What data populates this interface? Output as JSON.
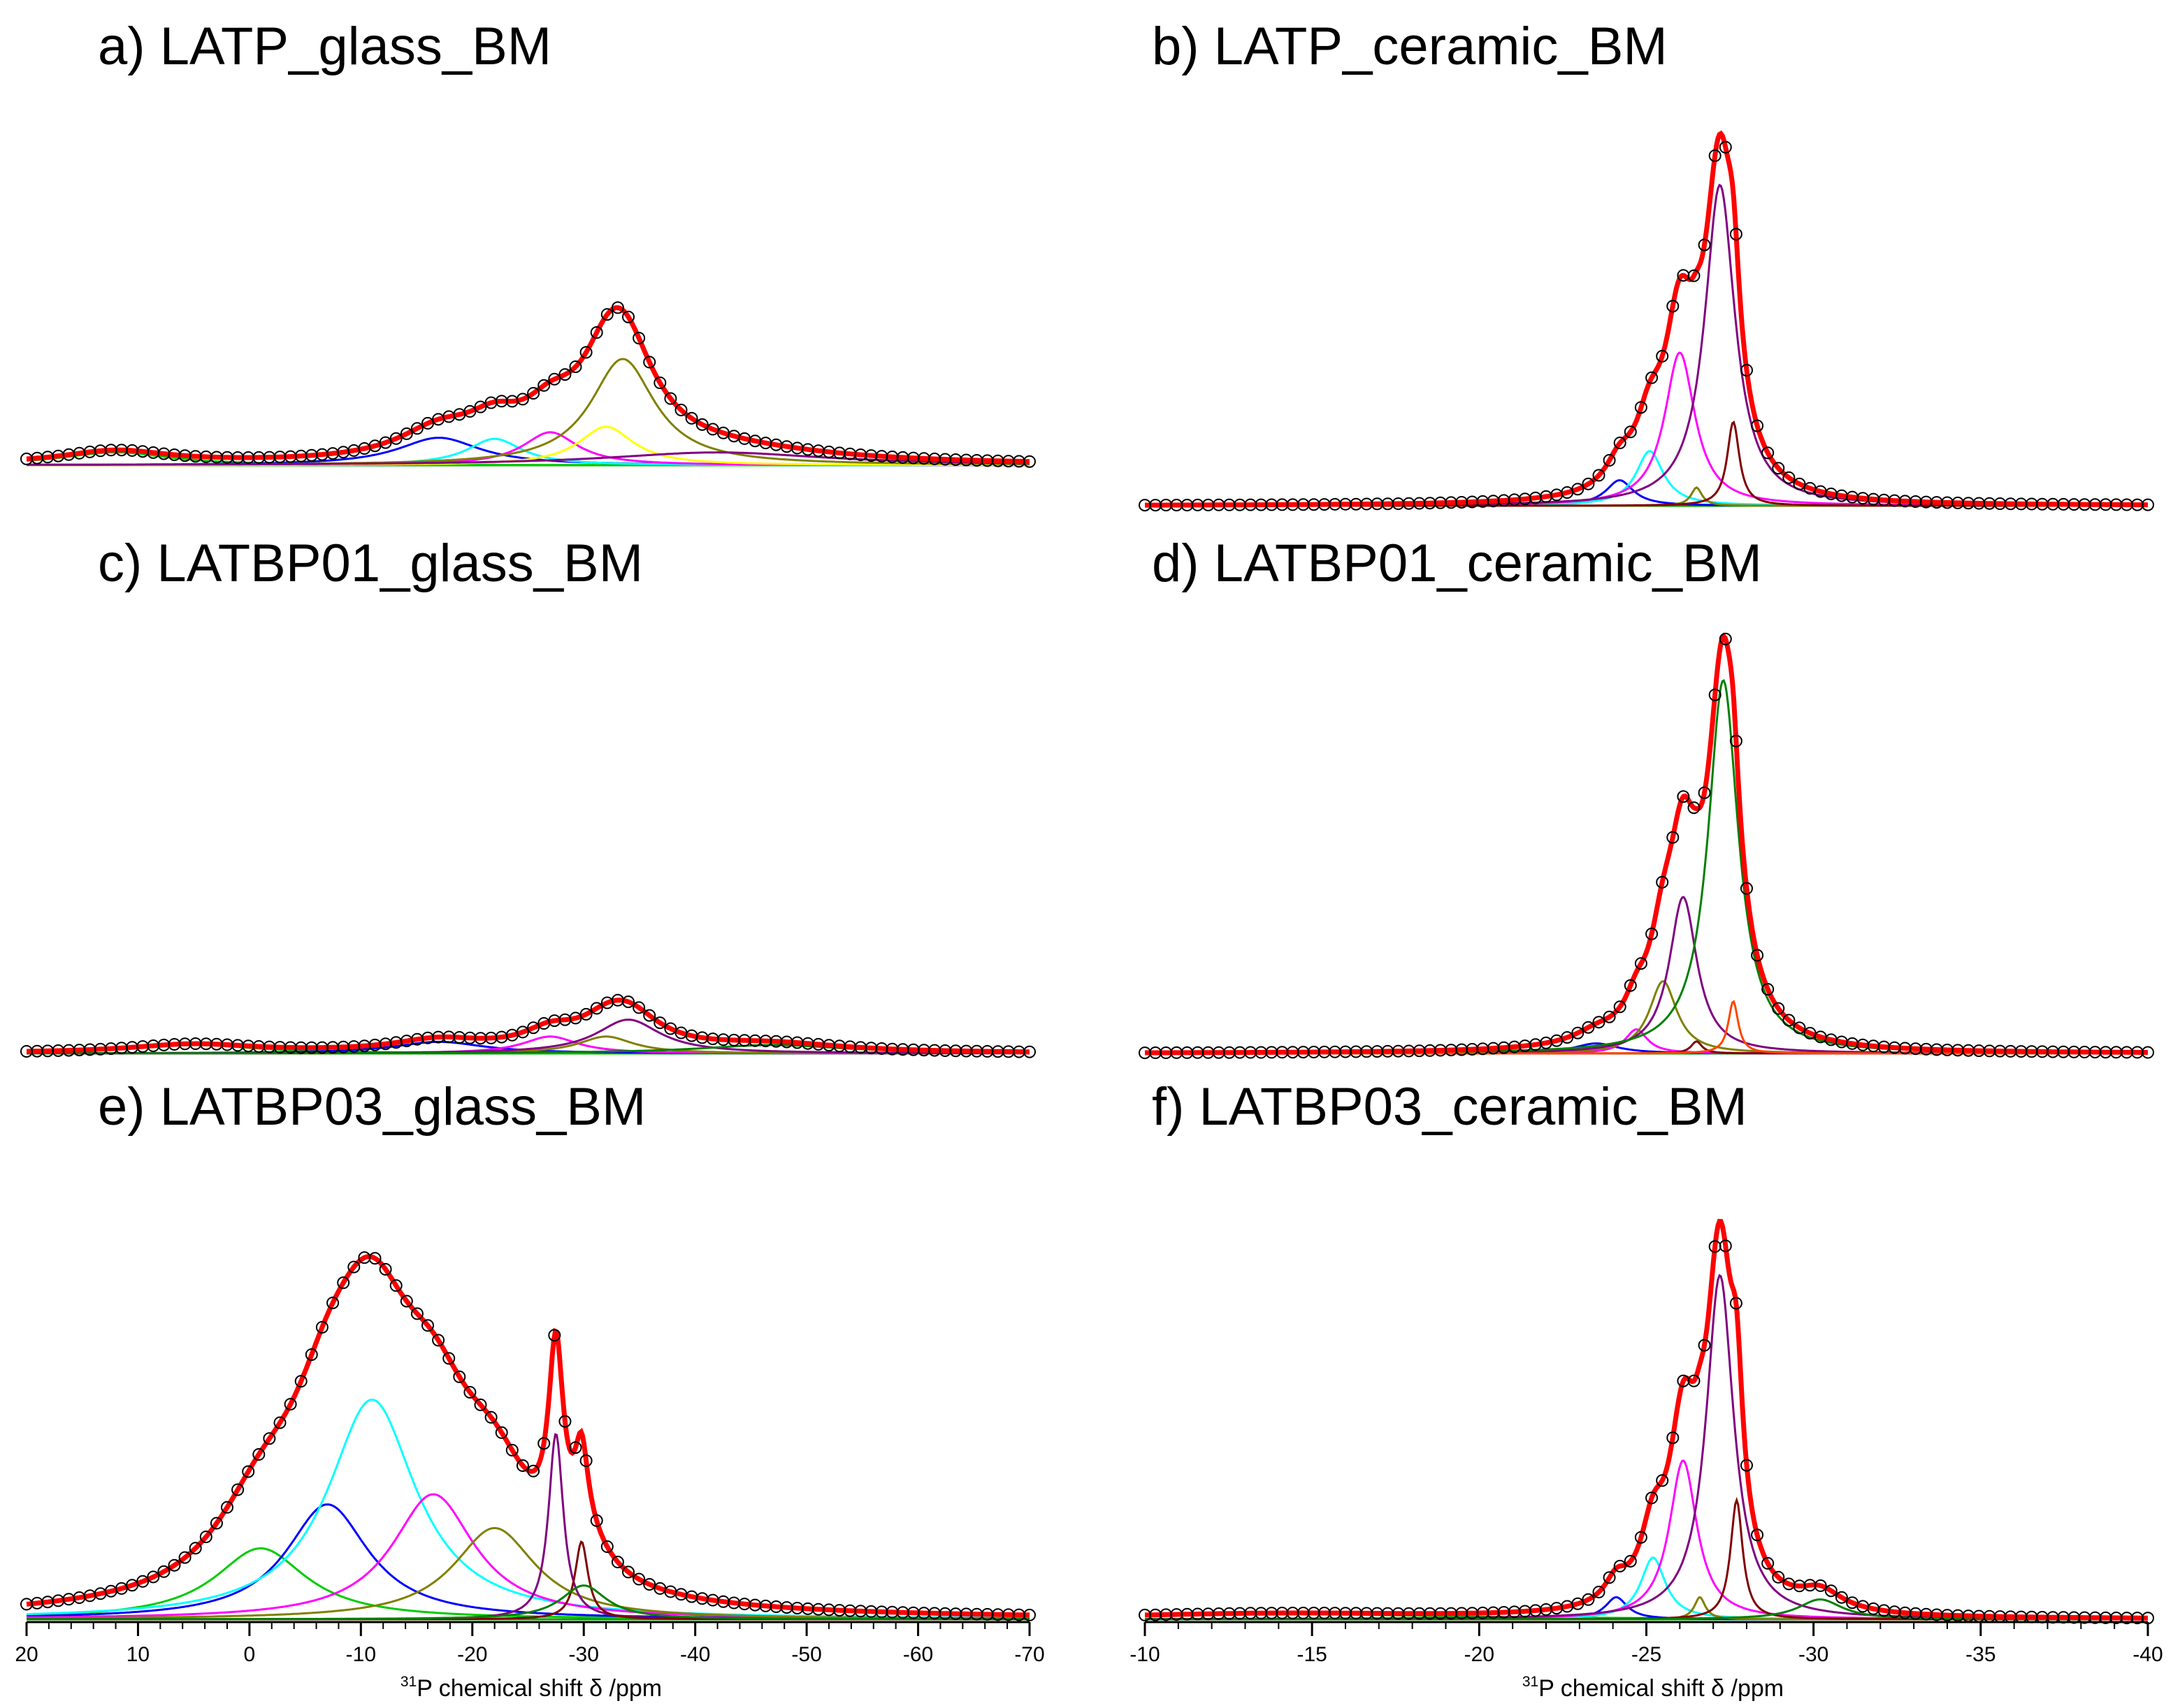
{
  "colors": {
    "fit": "#ff0000",
    "experimental": "#000000",
    "blue": "#0000ff",
    "cyan": "#00ffff",
    "magenta": "#ff00ff",
    "olive": "#808000",
    "purple": "#800080",
    "green": "#00cc00",
    "darkgreen": "#008000",
    "yellow": "#ffff00",
    "darkred": "#800000",
    "orangered": "#ff4500",
    "violet": "#8080ff"
  },
  "chart_data": [
    {
      "id": "a",
      "type": "line",
      "title": "a) LATP_glass_BM",
      "xlim": [
        20,
        -70
      ],
      "ymax": 4.5,
      "components": [
        {
          "color": "green",
          "center": 12,
          "amp": 0.35,
          "width": 6
        },
        {
          "color": "blue",
          "center": -17,
          "amp": 0.75,
          "width": 4.5
        },
        {
          "color": "cyan",
          "center": -22,
          "amp": 0.72,
          "width": 3
        },
        {
          "color": "magenta",
          "center": -27,
          "amp": 0.9,
          "width": 3
        },
        {
          "color": "yellow",
          "center": -32,
          "amp": 1.05,
          "width": 3
        },
        {
          "color": "olive",
          "center": -33.5,
          "amp": 2.9,
          "width": 3.5
        },
        {
          "color": "purple",
          "center": -42,
          "amp": 0.35,
          "width": 12
        }
      ]
    },
    {
      "id": "b",
      "type": "line",
      "title": "b) LATP_ceramic_BM",
      "xlim": [
        -10,
        -40
      ],
      "ymax": 10.5,
      "components": [
        {
          "color": "blue",
          "center": -24.2,
          "amp": 0.7,
          "width": 0.5
        },
        {
          "color": "cyan",
          "center": -25.1,
          "amp": 1.5,
          "width": 0.5
        },
        {
          "color": "magenta",
          "center": -26,
          "amp": 4.2,
          "width": 0.55
        },
        {
          "color": "olive",
          "center": -26.5,
          "amp": 0.5,
          "width": 0.2
        },
        {
          "color": "purple",
          "center": -27.2,
          "amp": 8.8,
          "width": 0.55
        },
        {
          "color": "darkred",
          "center": -27.6,
          "amp": 2.3,
          "width": 0.22
        }
      ]
    },
    {
      "id": "c",
      "type": "line",
      "title": "c) LATBP01_glass_BM",
      "xlim": [
        20,
        -70
      ],
      "ymax": 4.5,
      "components": [
        {
          "color": "green",
          "center": 5,
          "amp": 0.4,
          "width": 7
        },
        {
          "color": "blue",
          "center": -17,
          "amp": 0.55,
          "width": 5
        },
        {
          "color": "magenta",
          "center": -27,
          "amp": 0.8,
          "width": 3
        },
        {
          "color": "olive",
          "center": -32,
          "amp": 0.8,
          "width": 3
        },
        {
          "color": "purple",
          "center": -34,
          "amp": 1.6,
          "width": 3.5
        },
        {
          "color": "darkgreen",
          "center": -47,
          "amp": 0.4,
          "width": 8
        }
      ]
    },
    {
      "id": "d",
      "type": "line",
      "title": "d) LATBP01_ceramic_BM",
      "xlim": [
        -10,
        -40
      ],
      "ymax": 10.5,
      "components": [
        {
          "color": "blue",
          "center": -23.5,
          "amp": 0.25,
          "width": 0.8
        },
        {
          "color": "magenta",
          "center": -24.7,
          "amp": 0.6,
          "width": 0.4
        },
        {
          "color": "olive",
          "center": -25.5,
          "amp": 1.8,
          "width": 0.5
        },
        {
          "color": "purple",
          "center": -26.1,
          "amp": 3.9,
          "width": 0.5
        },
        {
          "color": "darkred",
          "center": -26.5,
          "amp": 0.3,
          "width": 0.2
        },
        {
          "color": "darkgreen",
          "center": -27.3,
          "amp": 9.3,
          "width": 0.55
        },
        {
          "color": "orangered",
          "center": -27.6,
          "amp": 1.3,
          "width": 0.18
        }
      ]
    },
    {
      "id": "e",
      "type": "line",
      "title": "e) LATBP03_glass_BM",
      "xlim": [
        20,
        -70
      ],
      "ymax": 12.2,
      "components": [
        {
          "color": "green",
          "center": -1,
          "amp": 2.1,
          "width": 5
        },
        {
          "color": "blue",
          "center": -7,
          "amp": 3.4,
          "width": 4.5
        },
        {
          "color": "cyan",
          "center": -11,
          "amp": 6.5,
          "width": 4.8
        },
        {
          "color": "magenta",
          "center": -16.5,
          "amp": 3.7,
          "width": 4.5
        },
        {
          "color": "olive",
          "center": -22,
          "amp": 2.7,
          "width": 4.5
        },
        {
          "color": "purple",
          "center": -27.5,
          "amp": 5.5,
          "width": 0.8
        },
        {
          "color": "darkred",
          "center": -29.8,
          "amp": 2.3,
          "width": 0.7
        },
        {
          "color": "darkgreen",
          "center": -30,
          "amp": 1.0,
          "width": 2.5
        }
      ]
    },
    {
      "id": "f",
      "type": "line",
      "title": "f) LATBP03_ceramic_BM",
      "xlim": [
        -10,
        -40
      ],
      "ymax": 10.5,
      "components": [
        {
          "color": "green",
          "center": -14,
          "amp": 0.12,
          "width": 6
        },
        {
          "color": "blue",
          "center": -24.1,
          "amp": 0.5,
          "width": 0.4
        },
        {
          "color": "cyan",
          "center": -25.2,
          "amp": 1.4,
          "width": 0.45
        },
        {
          "color": "magenta",
          "center": -26.1,
          "amp": 3.6,
          "width": 0.5
        },
        {
          "color": "olive",
          "center": -26.6,
          "amp": 0.5,
          "width": 0.2
        },
        {
          "color": "purple",
          "center": -27.2,
          "amp": 7.8,
          "width": 0.5
        },
        {
          "color": "darkred",
          "center": -27.7,
          "amp": 2.7,
          "width": 0.22
        },
        {
          "color": "darkgreen",
          "center": -30.2,
          "amp": 0.45,
          "width": 0.8
        }
      ]
    }
  ],
  "axes": {
    "left": {
      "ticks": [
        "20",
        "10",
        "0",
        "-10",
        "-20",
        "-30",
        "-40",
        "-50",
        "-60",
        "-70"
      ],
      "tick_values": [
        20,
        10,
        0,
        -10,
        -20,
        -30,
        -40,
        -50,
        -60,
        -70
      ],
      "label_sup": "31",
      "label": "P chemical shift δ /ppm"
    },
    "right": {
      "ticks": [
        "-10",
        "-15",
        "-20",
        "-25",
        "-30",
        "-35",
        "-40"
      ],
      "tick_values": [
        -10,
        -15,
        -20,
        -25,
        -30,
        -35,
        -40
      ],
      "label_sup": "31",
      "label": "P chemical shift δ /ppm"
    }
  }
}
